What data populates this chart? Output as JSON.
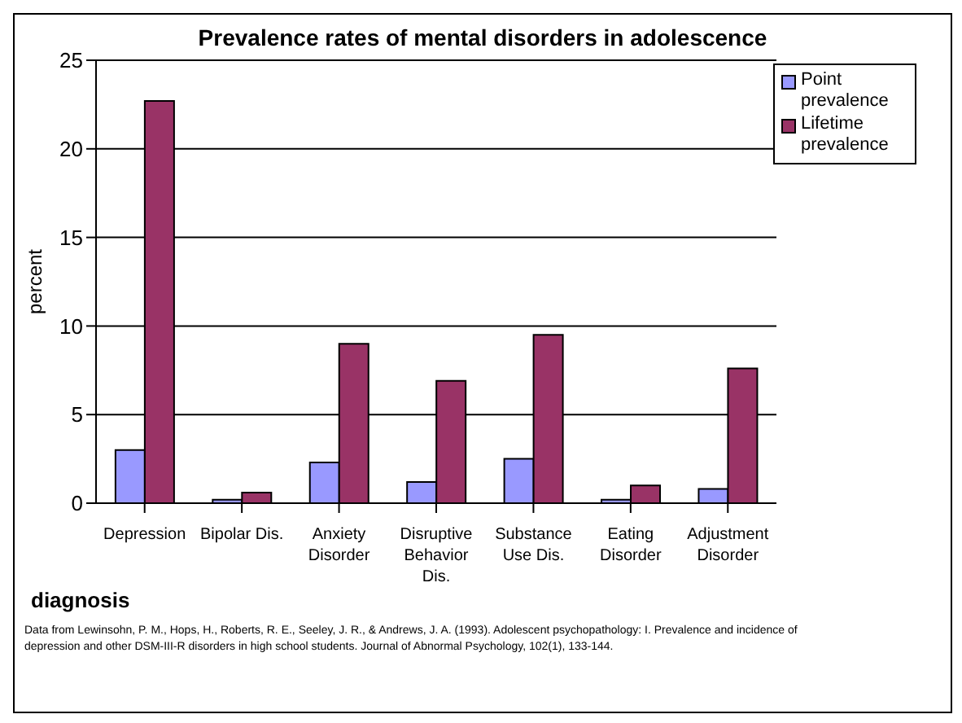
{
  "chart_data": {
    "type": "bar",
    "title": "Prevalence rates of mental disorders in adolescence",
    "xlabel": "diagnosis",
    "ylabel": "percent",
    "categories": [
      "Depression",
      "Bipolar Dis.",
      "Anxiety Disorder",
      "Disruptive Behavior Dis.",
      "Substance Use Dis.",
      "Eating Disorder",
      "Adjustment Disorder"
    ],
    "series": [
      {
        "name": "Point prevalence",
        "color": "#9999ff",
        "values": [
          3.0,
          0.2,
          2.3,
          1.2,
          2.5,
          0.2,
          0.8
        ]
      },
      {
        "name": "Lifetime prevalence",
        "color": "#993366",
        "values": [
          22.7,
          0.6,
          9.0,
          6.9,
          9.5,
          1.0,
          7.6
        ]
      }
    ],
    "ylim": [
      0,
      25
    ],
    "yticks": [
      0,
      5,
      10,
      15,
      20,
      25
    ],
    "grid": "y",
    "legend": "top right",
    "annotations": [
      "Data from  Lewinsohn, P. M., Hops, H., Roberts, R. E., Seeley, J. R., & Andrews, J. A. (1993). Adolescent psychopathology: I. Prevalence and incidence of depression and other DSM-III-R  disorders in high school students. Journal of Abnormal Psychology, 102(1), 133-144."
    ]
  }
}
